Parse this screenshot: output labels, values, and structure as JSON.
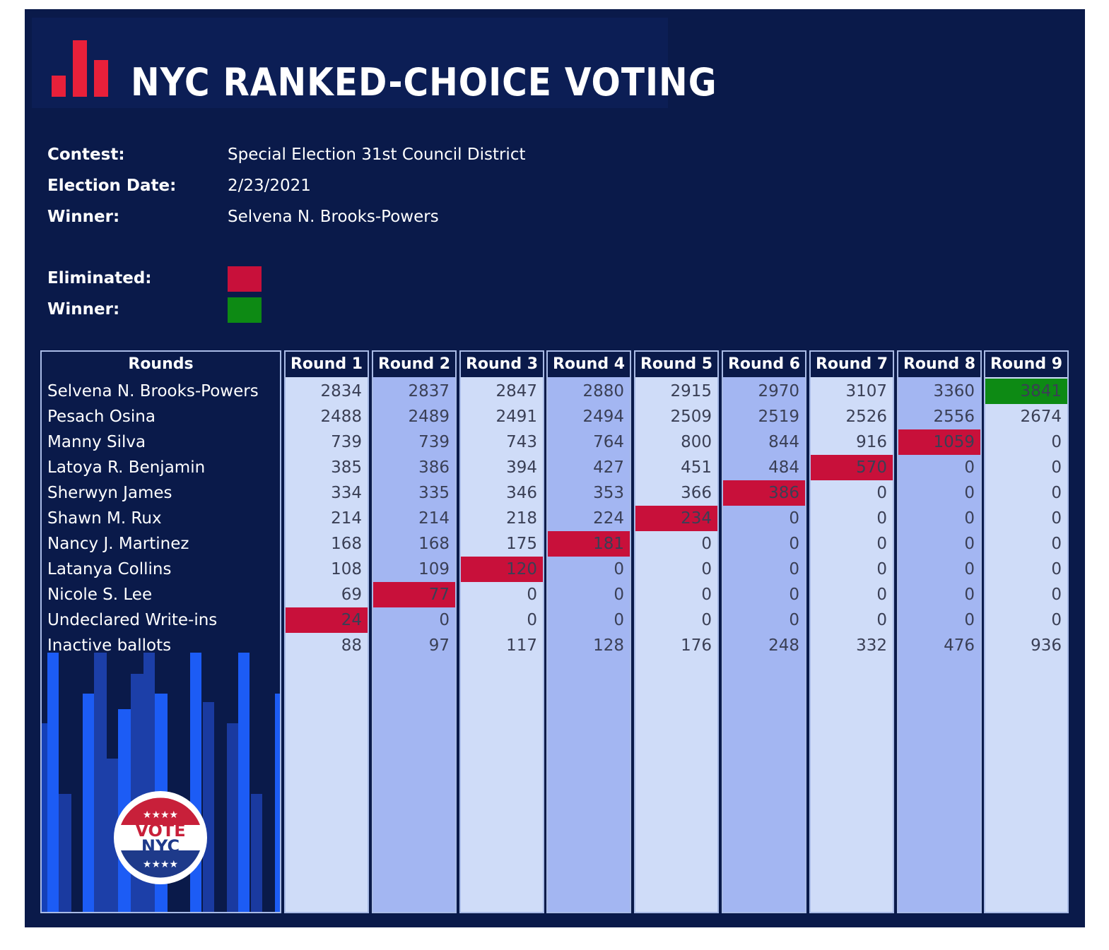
{
  "header": {
    "title": "NYC RANKED-CHOICE VOTING",
    "logo_icon": "bar-chart-icon",
    "logo_color": "#e8203a"
  },
  "info": {
    "contest_label": "Contest:",
    "contest_value": "Special Election 31st Council District",
    "date_label": "Election Date:",
    "date_value": "2/23/2021",
    "winner_label": "Winner:",
    "winner_value": "Selvena N. Brooks-Powers"
  },
  "legend": {
    "eliminated_label": "Eliminated:",
    "eliminated_color": "#c8103a",
    "winner_label": "Winner:",
    "winner_color": "#0d8a14"
  },
  "table": {
    "rounds_header": "Rounds",
    "round_headers": [
      "Round 1",
      "Round 2",
      "Round 3",
      "Round 4",
      "Round 5",
      "Round 6",
      "Round 7",
      "Round 8",
      "Round 9"
    ],
    "rows": [
      {
        "name": "Selvena N. Brooks-Powers",
        "values": [
          "2834",
          "2837",
          "2847",
          "2880",
          "2915",
          "2970",
          "3107",
          "3360",
          "3841"
        ]
      },
      {
        "name": "Pesach Osina",
        "values": [
          "2488",
          "2489",
          "2491",
          "2494",
          "2509",
          "2519",
          "2526",
          "2556",
          "2674"
        ]
      },
      {
        "name": "Manny Silva",
        "values": [
          "739",
          "739",
          "743",
          "764",
          "800",
          "844",
          "916",
          "1059",
          "0"
        ]
      },
      {
        "name": "Latoya R. Benjamin",
        "values": [
          "385",
          "386",
          "394",
          "427",
          "451",
          "484",
          "570",
          "0",
          "0"
        ]
      },
      {
        "name": "Sherwyn James",
        "values": [
          "334",
          "335",
          "346",
          "353",
          "366",
          "386",
          "0",
          "0",
          "0"
        ]
      },
      {
        "name": "Shawn M. Rux",
        "values": [
          "214",
          "214",
          "218",
          "224",
          "234",
          "0",
          "0",
          "0",
          "0"
        ]
      },
      {
        "name": "Nancy J. Martinez",
        "values": [
          "168",
          "168",
          "175",
          "181",
          "0",
          "0",
          "0",
          "0",
          "0"
        ]
      },
      {
        "name": "Latanya Collins",
        "values": [
          "108",
          "109",
          "120",
          "0",
          "0",
          "0",
          "0",
          "0",
          "0"
        ]
      },
      {
        "name": "Nicole S. Lee",
        "values": [
          "69",
          "77",
          "0",
          "0",
          "0",
          "0",
          "0",
          "0",
          "0"
        ]
      },
      {
        "name": "Undeclared Write-ins",
        "values": [
          "24",
          "0",
          "0",
          "0",
          "0",
          "0",
          "0",
          "0",
          "0"
        ]
      },
      {
        "name": "Inactive ballots",
        "values": [
          "88",
          "97",
          "117",
          "128",
          "176",
          "248",
          "332",
          "476",
          "936"
        ]
      }
    ],
    "eliminated": [
      [
        9,
        0
      ],
      [
        8,
        1
      ],
      [
        7,
        2
      ],
      [
        6,
        3
      ],
      [
        5,
        4
      ],
      [
        4,
        5
      ],
      [
        3,
        6
      ],
      [
        2,
        7
      ]
    ],
    "winner_cells": [
      [
        0,
        8
      ]
    ]
  },
  "badge": {
    "text_line1": "VOTE",
    "text_line2": "NYC",
    "stars": "★★★★"
  }
}
